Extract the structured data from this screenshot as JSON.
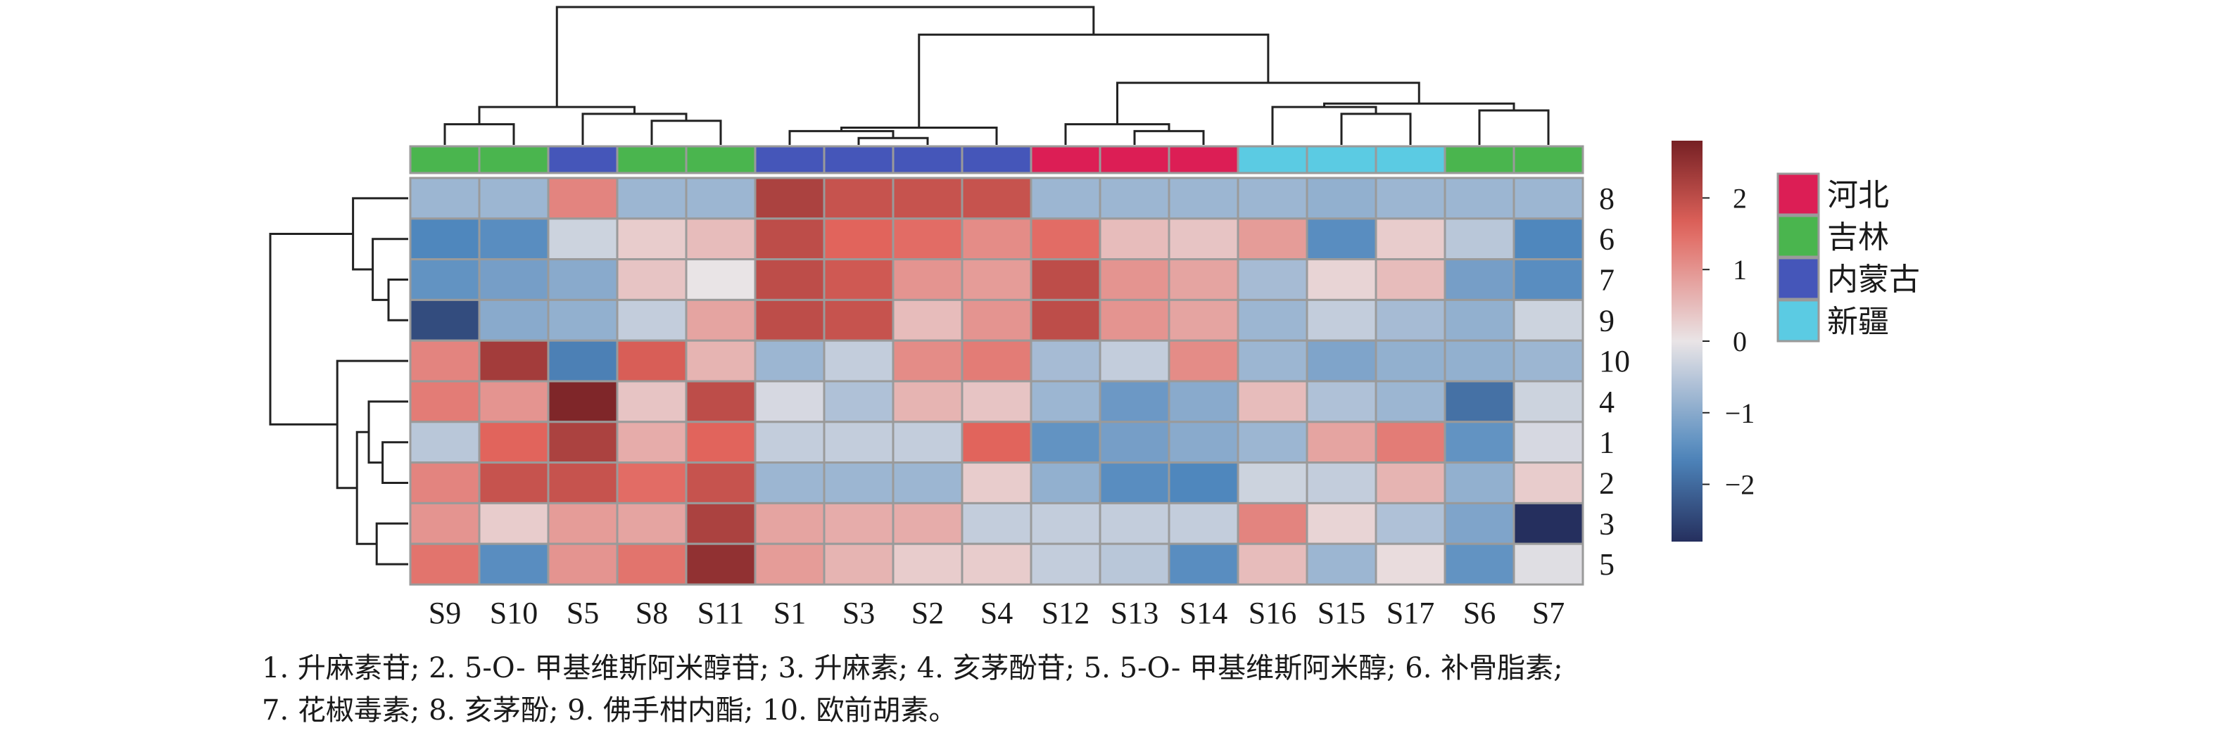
{
  "chart_data": {
    "type": "heatmap",
    "columns": [
      "S9",
      "S10",
      "S5",
      "S8",
      "S11",
      "S1",
      "S3",
      "S2",
      "S4",
      "S12",
      "S13",
      "S14",
      "S16",
      "S15",
      "S17",
      "S6",
      "S7"
    ],
    "rows": [
      "8",
      "6",
      "7",
      "9",
      "10",
      "4",
      "1",
      "2",
      "3",
      "5"
    ],
    "column_groups": [
      "吉林",
      "吉林",
      "内蒙古",
      "吉林",
      "吉林",
      "内蒙古",
      "内蒙古",
      "内蒙古",
      "内蒙古",
      "河北",
      "河北",
      "河北",
      "新疆",
      "新疆",
      "新疆",
      "吉林",
      "吉林"
    ],
    "values": [
      [
        -0.8,
        -0.8,
        1.2,
        -0.8,
        -0.8,
        2.2,
        1.9,
        1.9,
        1.9,
        -0.8,
        -0.8,
        -0.8,
        -0.8,
        -0.9,
        -0.8,
        -0.8,
        -0.8
      ],
      [
        -1.6,
        -1.5,
        -0.3,
        0.3,
        0.5,
        2.0,
        1.6,
        1.5,
        1.1,
        1.5,
        0.5,
        0.4,
        0.9,
        -1.5,
        0.3,
        -0.5,
        -1.6
      ],
      [
        -1.4,
        -1.2,
        -1.0,
        0.4,
        0.0,
        2.0,
        1.8,
        1.0,
        0.9,
        2.0,
        1.0,
        0.8,
        -0.7,
        0.2,
        0.5,
        -1.2,
        -1.5
      ],
      [
        -2.4,
        -1.0,
        -0.9,
        -0.4,
        0.8,
        2.0,
        1.9,
        0.5,
        1.0,
        2.0,
        1.0,
        0.8,
        -0.8,
        -0.4,
        -0.7,
        -0.9,
        -0.3
      ],
      [
        1.2,
        2.3,
        -1.7,
        1.7,
        0.6,
        -0.8,
        -0.4,
        1.1,
        1.3,
        -0.7,
        -0.4,
        1.1,
        -0.8,
        -1.1,
        -0.9,
        -0.9,
        -0.8
      ],
      [
        1.3,
        1.0,
        2.7,
        0.4,
        2.0,
        -0.2,
        -0.6,
        0.6,
        0.4,
        -0.8,
        -1.3,
        -1.0,
        0.5,
        -0.6,
        -0.8,
        -1.9,
        -0.3
      ],
      [
        -0.5,
        1.6,
        2.2,
        0.7,
        1.6,
        -0.4,
        -0.4,
        -0.4,
        1.6,
        -1.4,
        -1.2,
        -1.0,
        -0.8,
        0.8,
        1.3,
        -1.4,
        -0.2
      ],
      [
        1.2,
        1.9,
        1.9,
        1.5,
        1.9,
        -0.8,
        -0.8,
        -0.8,
        0.3,
        -0.9,
        -1.5,
        -1.6,
        -0.3,
        -0.4,
        0.6,
        -0.9,
        0.3
      ],
      [
        1.0,
        0.3,
        0.9,
        0.8,
        2.2,
        0.8,
        0.7,
        0.7,
        -0.4,
        -0.4,
        -0.4,
        -0.4,
        1.2,
        0.2,
        -0.6,
        -1.1,
        -3.2
      ],
      [
        1.4,
        -1.5,
        1.0,
        1.4,
        2.5,
        0.9,
        0.6,
        0.3,
        0.3,
        -0.4,
        -0.5,
        -1.5,
        0.5,
        -0.8,
        0.1,
        -1.4,
        -0.1
      ]
    ],
    "colorbar": {
      "ticks": [
        2,
        1,
        0,
        -1,
        -2
      ],
      "tick_labels": [
        "2",
        "1",
        "0",
        "−1",
        "−2"
      ],
      "range": [
        -2.8,
        2.8
      ]
    },
    "legend": [
      {
        "name": "河北",
        "color": "#dc1e55"
      },
      {
        "name": "吉林",
        "color": "#4ab54e"
      },
      {
        "name": "内蒙古",
        "color": "#4556b9"
      },
      {
        "name": "新疆",
        "color": "#5bcbe3"
      }
    ],
    "scale_colors": {
      "low": "#252f5e",
      "mid_low": "#4f87bd",
      "mid": "#e9e4e6",
      "mid_high": "#e1645c",
      "high": "#762024"
    }
  },
  "caption": {
    "line1": "1. 升麻素苷; 2. 5-O- 甲基维斯阿米醇苷; 3. 升麻素; 4. 亥茅酚苷; 5. 5-O- 甲基维斯阿米醇; 6. 补骨脂素;",
    "line2": "7. 花椒毒素; 8. 亥茅酚; 9. 佛手柑内酯; 10. 欧前胡素。"
  }
}
